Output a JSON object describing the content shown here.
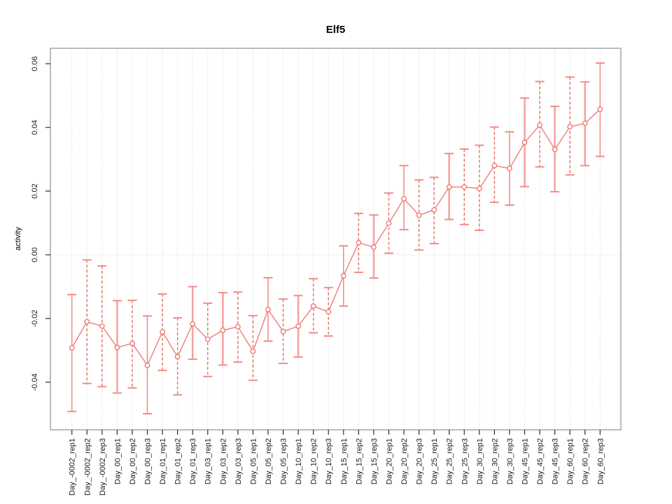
{
  "window": {
    "background": "#ffffff"
  },
  "chart_data": {
    "type": "line",
    "subtype": "means-with-error-bars",
    "title": "Elf5",
    "xlabel": "",
    "ylabel": "activity",
    "legend": "none",
    "grid": {
      "vertical": "dotted line at every category",
      "horizontal": "dotted line at y=0 only"
    },
    "ylim": [
      -0.0547,
      0.065
    ],
    "y_ticks": {
      "values": [
        0.06,
        0.04,
        0.02,
        0.0,
        -0.02,
        -0.04
      ],
      "labels": [
        "0.06",
        "0.04",
        "0.02",
        "0.00",
        "-0.02",
        "-0.04"
      ]
    },
    "categories": [
      "Day_-0002_rep1",
      "Day_-0002_rep2",
      "Day_-0002_rep3",
      "Day_00_rep1",
      "Day_00_rep2",
      "Day_00_rep3",
      "Day_01_rep1",
      "Day_01_rep2",
      "Day_01_rep3",
      "Day_03_rep1",
      "Day_03_rep2",
      "Day_03_rep3",
      "Day_05_rep1",
      "Day_05_rep2",
      "Day_05_rep3",
      "Day_10_rep1",
      "Day_10_rep2",
      "Day_10_rep3",
      "Day_15_rep1",
      "Day_15_rep2",
      "Day_15_rep3",
      "Day_20_rep1",
      "Day_20_rep2",
      "Day_20_rep3",
      "Day_25_rep1",
      "Day_25_rep2",
      "Day_25_rep3",
      "Day_30_rep1",
      "Day_30_rep2",
      "Day_30_rep3",
      "Day_45_rep1",
      "Day_45_rep2",
      "Day_45_rep3",
      "Day_60_rep1",
      "Day_60_rep2",
      "Day_60_rep3"
    ],
    "series": [
      {
        "name": "activity",
        "marker": "open-circle",
        "means": [
          -0.0292,
          -0.021,
          -0.0224,
          -0.0291,
          -0.0278,
          -0.0347,
          -0.0242,
          -0.032,
          -0.0217,
          -0.0265,
          -0.0237,
          -0.0226,
          -0.0303,
          -0.0172,
          -0.0241,
          -0.0224,
          -0.0161,
          -0.0179,
          -0.0066,
          0.0038,
          0.0024,
          0.0099,
          0.0176,
          0.0124,
          0.0141,
          0.0213,
          0.0213,
          0.0208,
          0.028,
          0.0271,
          0.0353,
          0.0407,
          0.0331,
          0.0402,
          0.0413,
          0.0457
        ],
        "upper": [
          -0.0125,
          -0.0016,
          -0.0035,
          -0.0144,
          -0.0143,
          -0.0192,
          -0.0123,
          -0.0198,
          -0.01,
          -0.0152,
          -0.0119,
          -0.0117,
          -0.0191,
          -0.0072,
          -0.0139,
          -0.0128,
          -0.0075,
          -0.0103,
          0.0028,
          0.013,
          0.0125,
          0.0194,
          0.028,
          0.0235,
          0.0243,
          0.0318,
          0.0332,
          0.0344,
          0.0401,
          0.0386,
          0.0492,
          0.0544,
          0.0466,
          0.0558,
          0.0543,
          0.0602
        ],
        "lower": [
          -0.0492,
          -0.0404,
          -0.0414,
          -0.0434,
          -0.0418,
          -0.0499,
          -0.0363,
          -0.044,
          -0.0328,
          -0.0382,
          -0.0346,
          -0.0337,
          -0.0394,
          -0.0271,
          -0.0341,
          -0.0321,
          -0.0245,
          -0.0255,
          -0.0161,
          -0.0055,
          -0.0073,
          0.0005,
          0.0079,
          0.0015,
          0.0035,
          0.0111,
          0.0095,
          0.0077,
          0.0165,
          0.0156,
          0.0214,
          0.0276,
          0.0198,
          0.0251,
          0.028,
          0.0309
        ],
        "error_line_types": [
          "solid",
          "dashed",
          "dashed",
          "thick",
          "dashed",
          "solid",
          "dashed",
          "dashed",
          "thick",
          "dashed",
          "thick",
          "dashed",
          "dashed",
          "solid",
          "dashed",
          "thick",
          "dashed",
          "dashed",
          "solid",
          "dashed",
          "thick",
          "dashed",
          "solid",
          "dashed",
          "dashed",
          "thick",
          "dashed",
          "dashed",
          "dashed",
          "solid",
          "thick",
          "dashed",
          "thick",
          "dashed",
          "thick",
          "solid"
        ]
      }
    ],
    "colors": {
      "point": "#ee716b",
      "series_line": "#ef7d77",
      "error_solid": "#f28784",
      "error_dashed": "#e96a60",
      "error_thick": "#f5a3a0",
      "cap": "#f28c88",
      "grid": "#d6d6d6",
      "box": "#8f8f8f",
      "tick": "#2a2a2a",
      "text": "#1a1a1a"
    }
  }
}
